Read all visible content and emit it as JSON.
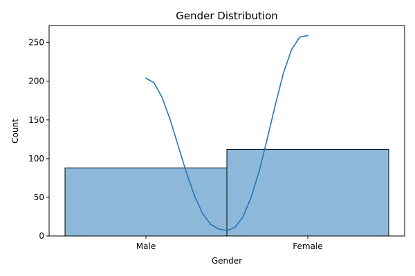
{
  "chart_data": {
    "type": "bar",
    "title": "Gender Distribution",
    "xlabel": "Gender",
    "ylabel": "Count",
    "categories": [
      "Male",
      "Female"
    ],
    "values": [
      88,
      112
    ],
    "ylim": [
      0,
      272
    ],
    "yticks": [
      0,
      50,
      100,
      150,
      200,
      250
    ],
    "grid": false,
    "legend": "none",
    "kde": {
      "x": [
        0.0,
        0.05,
        0.1,
        0.15,
        0.2,
        0.25,
        0.3,
        0.35,
        0.4,
        0.45,
        0.5,
        0.55,
        0.6,
        0.65,
        0.7,
        0.75,
        0.8,
        0.85,
        0.9,
        0.95,
        1.0
      ],
      "y": [
        204,
        198,
        179,
        150,
        116,
        82,
        52,
        29,
        15,
        9,
        7,
        11,
        25,
        50,
        84,
        126,
        170,
        211,
        241,
        257,
        259
      ]
    },
    "colors": {
      "bar_fill": "#8db8da",
      "bar_edge": "#000000",
      "kde_line": "#1f77b4",
      "axes": "#000000"
    }
  }
}
